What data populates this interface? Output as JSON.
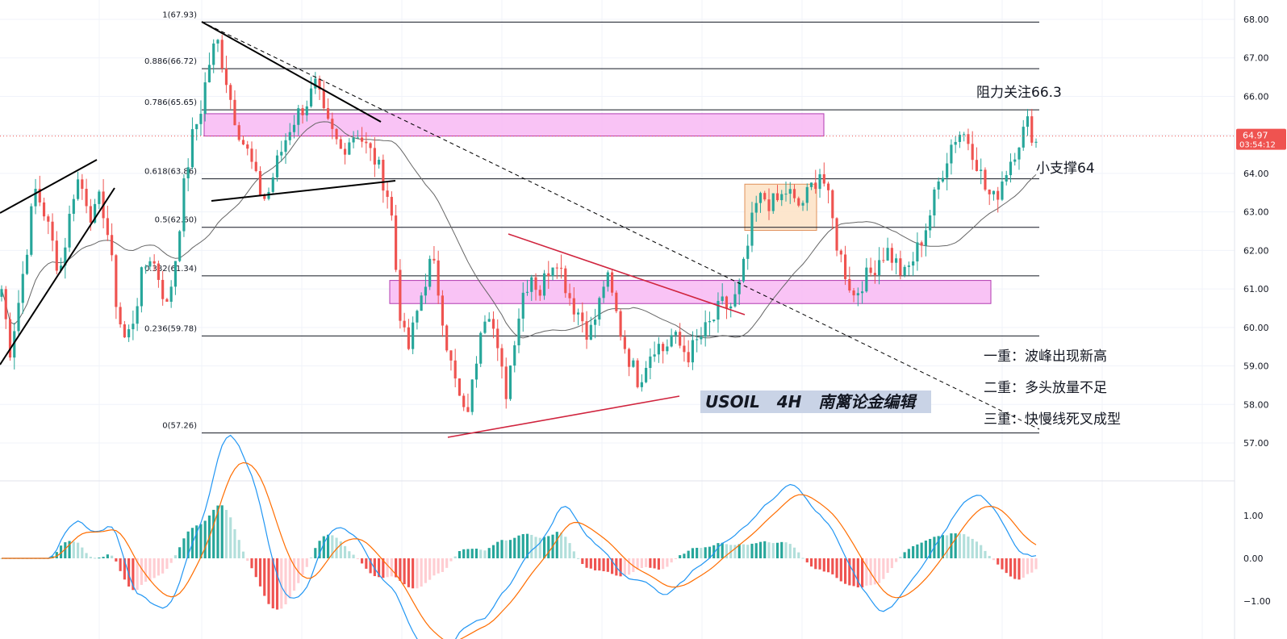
{
  "chart_data": {
    "type": "candlestick",
    "title": "USOIL   4H   南篱论金编辑",
    "price_axis": {
      "ticks": [
        "68.00",
        "67.00",
        "66.00",
        "65.00",
        "64.00",
        "63.00",
        "62.00",
        "61.00",
        "60.00",
        "59.00",
        "58.00",
        "57.00"
      ],
      "range": [
        56.4,
        68.3
      ],
      "current_price": "64.97",
      "countdown": "03:54:12"
    },
    "fib_levels": [
      {
        "label": "1(67.93)",
        "value": 67.93
      },
      {
        "label": "0.886(66.72)",
        "value": 66.72
      },
      {
        "label": "0.786(65.65)",
        "value": 65.65
      },
      {
        "label": "0.618(63.86)",
        "value": 63.86
      },
      {
        "label": "0.5(62.60)",
        "value": 62.6
      },
      {
        "label": "0.382(61.34)",
        "value": 61.34
      },
      {
        "label": "0.236(59.78)",
        "value": 59.78
      },
      {
        "label": "0(57.26)",
        "value": 57.26
      }
    ],
    "zones": [
      {
        "kind": "resistance",
        "low": 64.97,
        "high": 65.55,
        "color": "#f8b9f3"
      },
      {
        "kind": "support",
        "low": 60.62,
        "high": 61.22,
        "color": "#f8b9f3"
      },
      {
        "kind": "consolidation",
        "low": 62.52,
        "high": 63.72,
        "color": "#fde2c4"
      }
    ],
    "annotations": {
      "resistance_note": "阻力关注66.3",
      "support_note": "小支撑64",
      "notes": [
        "一重：波峰出现新高",
        "二重：多头放量不足",
        "三重：快慢线死叉成型"
      ]
    },
    "macd_axis": {
      "ticks": [
        "1.00",
        "0.00",
        "−1.00"
      ],
      "range": [
        -1.45,
        1.55
      ]
    },
    "candle_path": [
      61,
      59.4,
      60.6,
      62,
      63.6,
      63.1,
      62.3,
      61.4,
      62.6,
      63.9,
      63.5,
      62.8,
      63.4,
      62.2,
      60.4,
      59.6,
      60.3,
      61.4,
      61.9,
      61.3,
      60.5,
      61.8,
      63.6,
      64.9,
      65.6,
      66.8,
      67.5,
      66.6,
      65.6,
      64.9,
      64.4,
      63.6,
      63.3,
      64.1,
      64.7,
      65.3,
      65.6,
      65.9,
      66.3,
      65.4,
      65,
      64.6,
      64.9,
      65.1,
      64.7,
      64.4,
      63.9,
      63.2,
      60.6,
      59.3,
      60.2,
      61.1,
      61.8,
      60.7,
      59.3,
      58.4,
      57.6,
      58.6,
      60.3,
      60.5,
      59.2,
      58.3,
      59.8,
      60.9,
      61.4,
      60.9,
      61.5,
      61.9,
      61.2,
      60.6,
      60.3,
      59.8,
      60.4,
      61.4,
      60.6,
      59.7,
      59.1,
      58.6,
      59.2,
      59.6,
      59.4,
      59.8,
      59.5,
      59.3,
      59.6,
      59.9,
      60.2,
      60.6,
      60.5,
      60.9,
      61.9,
      63.1,
      63.4,
      63.2,
      63.3,
      63.6,
      63.1,
      63.3,
      63.7,
      64.1,
      63.2,
      62.1,
      61.4,
      60.8,
      61.2,
      61.4,
      61.8,
      62,
      61.7,
      61.3,
      61.7,
      62.2,
      62.8,
      63.6,
      64.3,
      64.9,
      65.1,
      64.8,
      64.2,
      63.5,
      63.3,
      63.9,
      64.4,
      64.9,
      65.3,
      64.8
    ]
  }
}
